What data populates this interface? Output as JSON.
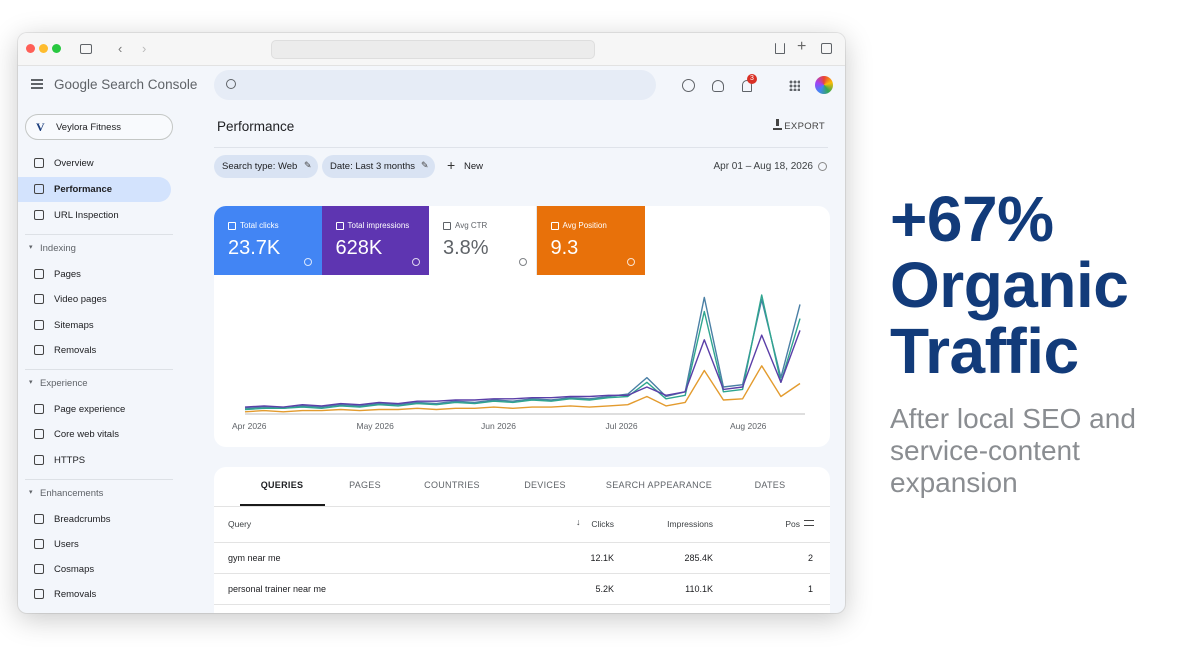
{
  "app": {
    "brand": "Google Search Console",
    "notification_count": "3"
  },
  "property": {
    "initial": "V",
    "name": "Veylora Fitness"
  },
  "nav": {
    "top": [
      "Overview",
      "Performance",
      "URL Inspection"
    ],
    "active": 1,
    "sections": [
      {
        "title": "Indexing",
        "items": [
          "Pages",
          "Video pages",
          "Sitemaps",
          "Removals"
        ]
      },
      {
        "title": "Experience",
        "items": [
          "Page experience",
          "Core web vitals",
          "HTTPS"
        ]
      },
      {
        "title": "Enhancements",
        "items": [
          "Breadcrumbs",
          "Users",
          "Cosmaps",
          "Removals"
        ]
      }
    ]
  },
  "page": {
    "title": "Performance",
    "export": "EXPORT",
    "filters": [
      "Search type: Web",
      "Date: Last 3 months"
    ],
    "new_filter": "New",
    "date_range": "Apr 01 – Aug 18, 2026"
  },
  "metrics": [
    {
      "label": "Total clicks",
      "value": "23.7K",
      "color": "#4285f4"
    },
    {
      "label": "Total impressions",
      "value": "628K",
      "color": "#5e35b1"
    },
    {
      "label": "Avg CTR",
      "value": "3.8%",
      "color": "#ffffff"
    },
    {
      "label": "Avg Position",
      "value": "9.3",
      "color": "#e8710a"
    }
  ],
  "chart": {
    "type": "line",
    "xticks": [
      "Apr 2026",
      "May 2026",
      "Jun 2026",
      "Jul 2026",
      "Aug 2026"
    ],
    "series": [
      {
        "color": "#4a7fa5",
        "values": [
          4,
          5,
          4,
          6,
          5,
          7,
          6,
          8,
          7,
          9,
          8,
          10,
          9,
          11,
          10,
          12,
          11,
          13,
          12,
          14,
          16,
          30,
          14,
          18,
          98,
          22,
          24,
          96,
          30,
          92
        ]
      },
      {
        "color": "#2fa58f",
        "values": [
          3,
          4,
          4,
          5,
          4,
          6,
          5,
          7,
          6,
          8,
          7,
          9,
          8,
          10,
          9,
          11,
          10,
          12,
          11,
          13,
          14,
          26,
          12,
          15,
          86,
          18,
          20,
          100,
          26,
          80
        ]
      },
      {
        "color": "#5b3fa8",
        "values": [
          5,
          6,
          5,
          7,
          6,
          8,
          7,
          9,
          8,
          10,
          10,
          11,
          11,
          12,
          12,
          13,
          13,
          14,
          14,
          15,
          15,
          22,
          15,
          18,
          62,
          20,
          22,
          66,
          26,
          70
        ]
      },
      {
        "color": "#e39b2e",
        "values": [
          1,
          2,
          1,
          2,
          2,
          3,
          2,
          3,
          3,
          4,
          3,
          4,
          4,
          5,
          4,
          5,
          5,
          6,
          5,
          6,
          7,
          14,
          6,
          9,
          36,
          11,
          12,
          40,
          14,
          25
        ]
      }
    ]
  },
  "tabs": {
    "items": [
      "QUERIES",
      "PAGES",
      "COUNTRIES",
      "DEVICES",
      "SEARCH APPEARANCE",
      "DATES"
    ],
    "active": 0
  },
  "table": {
    "columns": [
      "Query",
      "Clicks",
      "Impressions",
      "Pos"
    ],
    "rows": [
      [
        "gym near me",
        "12.1K",
        "285.4K",
        "2"
      ],
      [
        "personal trainer near me",
        "5.2K",
        "110.1K",
        "1"
      ]
    ]
  },
  "hero": {
    "headline": "+67% Organic Traffic",
    "subtitle": "After local SEO and service-content expansion"
  }
}
